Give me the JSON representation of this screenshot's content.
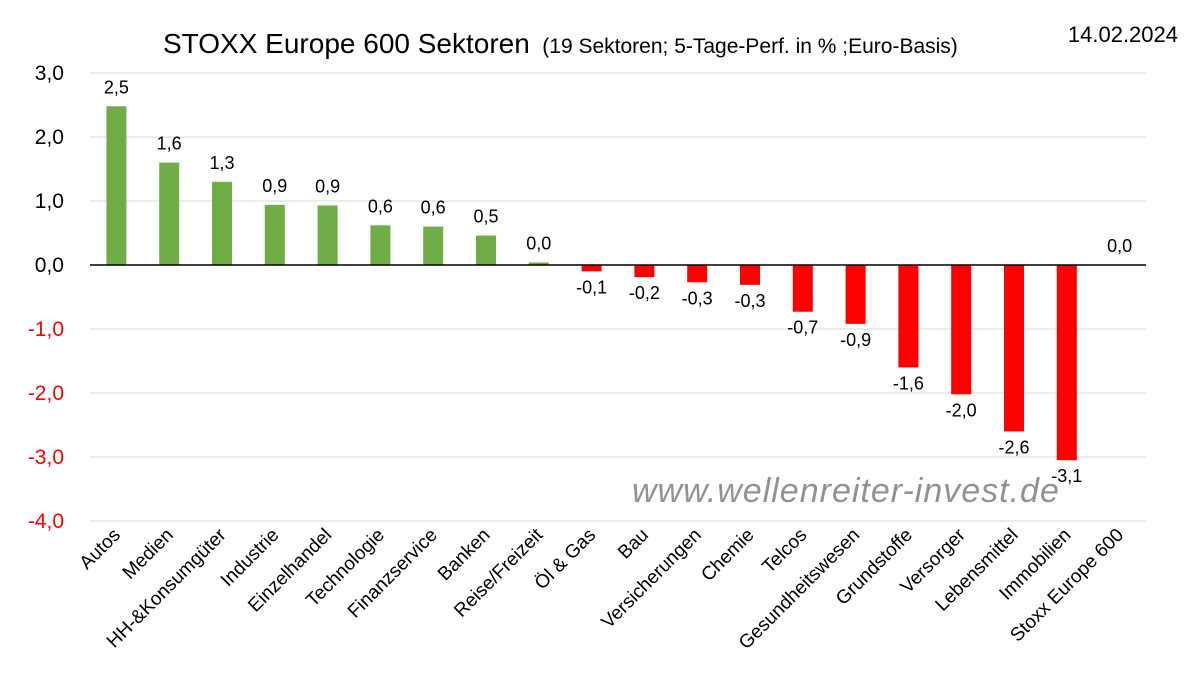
{
  "chart_data": {
    "type": "bar",
    "title": "STOXX Europe 600 Sektoren",
    "subtitle": "(19 Sektoren; 5-Tage-Perf. in % ;Euro-Basis)",
    "date": "14.02.2024",
    "watermark": "www.wellenreiter-invest.de",
    "ylim": [
      -4.0,
      3.0
    ],
    "yticks": [
      3.0,
      2.0,
      1.0,
      0.0,
      -1.0,
      -2.0,
      -3.0,
      -4.0
    ],
    "ytick_labels": [
      "3,0",
      "2,0",
      "1,0",
      "0,0",
      "-1,0",
      "-2,0",
      "-3,0",
      "-4,0"
    ],
    "grid": true,
    "colors": {
      "positive": "#70ad47",
      "negative": "#ff0000",
      "positive_axis": "#000000",
      "negative_axis": "#ff0000"
    },
    "categories": [
      "Autos",
      "Medien",
      "HH-&Konsumgüter",
      "Industrie",
      "Einzelhandel",
      "Technologie",
      "Finanzservice",
      "Banken",
      "Reise/Freizeit",
      "Öl & Gas",
      "Bau",
      "Versicherungen",
      "Chemie",
      "Telcos",
      "Gesundheitswesen",
      "Grundstoffe",
      "Versorger",
      "Lebensmittel",
      "Immobilien",
      "Stoxx Europe 600"
    ],
    "values": [
      2.48,
      1.6,
      1.3,
      0.94,
      0.93,
      0.62,
      0.6,
      0.46,
      0.04,
      -0.1,
      -0.19,
      -0.27,
      -0.31,
      -0.73,
      -0.92,
      -1.6,
      -2.02,
      -2.6,
      -3.05,
      0.0
    ],
    "value_labels": [
      "2,5",
      "1,6",
      "1,3",
      "0,9",
      "0,9",
      "0,6",
      "0,6",
      "0,5",
      "0,0",
      "-0,1",
      "-0,2",
      "-0,3",
      "-0,3",
      "-0,7",
      "-0,9",
      "-1,6",
      "-2,0",
      "-2,6",
      "-3,1",
      "0,0"
    ]
  }
}
